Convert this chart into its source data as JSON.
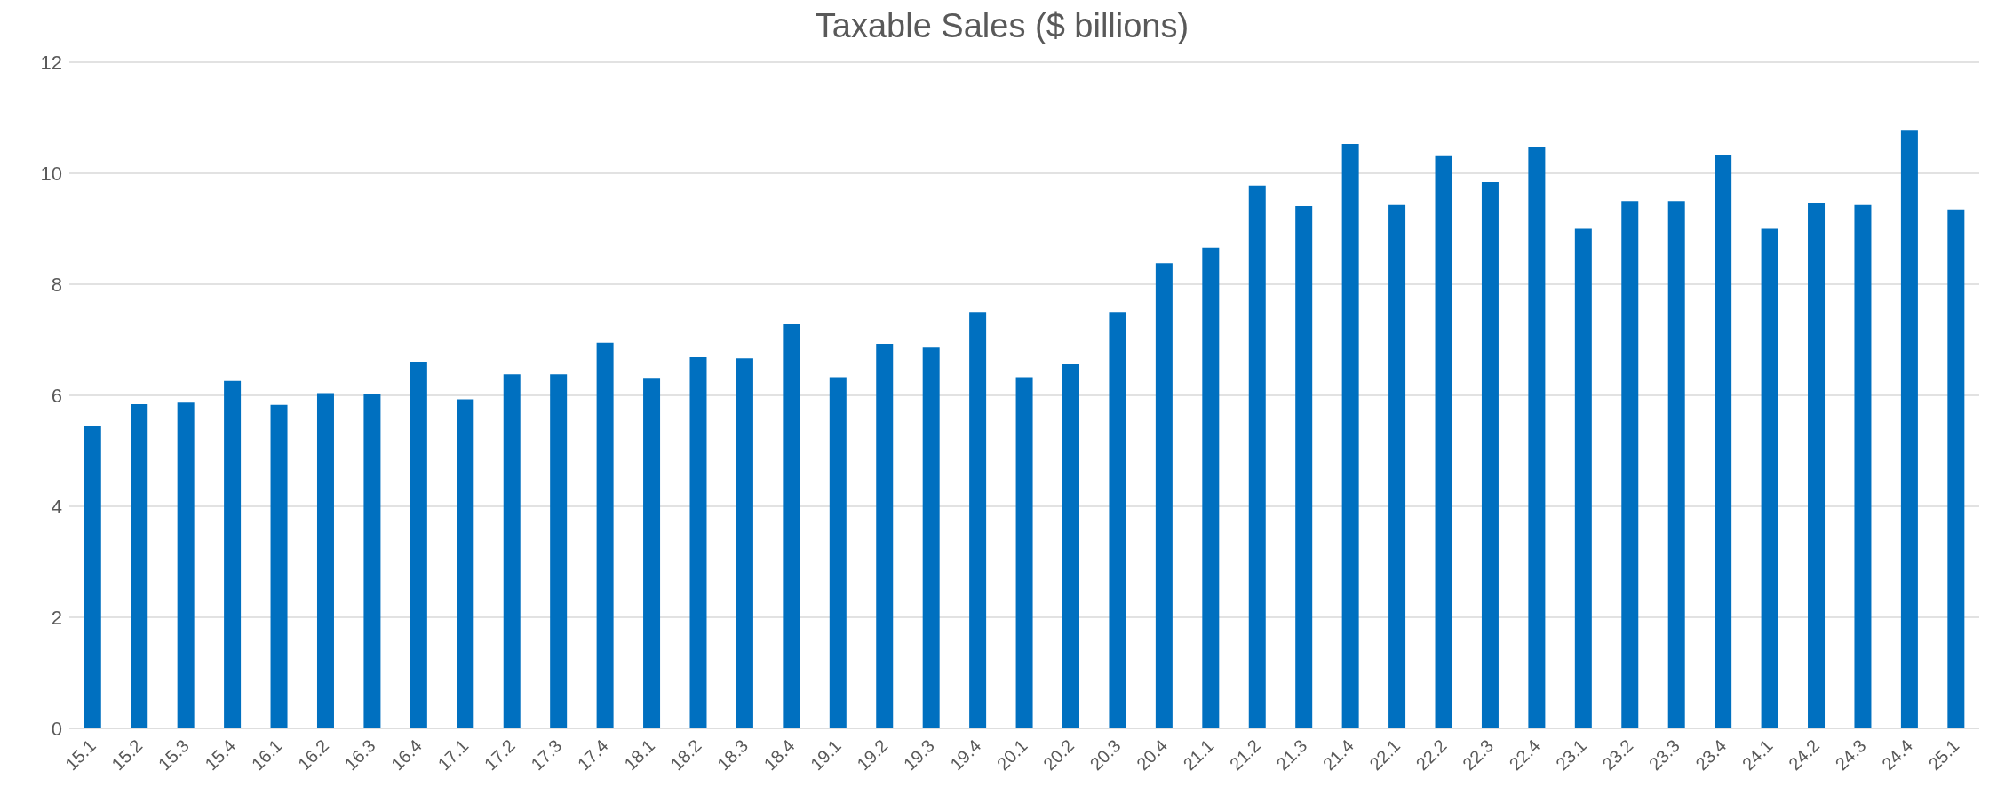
{
  "chart_data": {
    "type": "bar",
    "title": "Taxable Sales ($ billions)",
    "categories": [
      "15.1",
      "15.2",
      "15.3",
      "15.4",
      "16.1",
      "16.2",
      "16.3",
      "16.4",
      "17.1",
      "17.2",
      "17.3",
      "17.4",
      "18.1",
      "18.2",
      "18.3",
      "18.4",
      "19.1",
      "19.2",
      "19.3",
      "19.4",
      "20.1",
      "20.2",
      "20.3",
      "20.4",
      "21.1",
      "21.2",
      "21.3",
      "21.4",
      "22.1",
      "22.2",
      "22.3",
      "22.4",
      "23.1",
      "23.2",
      "23.3",
      "23.4",
      "24.1",
      "24.2",
      "24.3",
      "24.4",
      "25.1"
    ],
    "values": [
      5.44,
      5.84,
      5.87,
      6.26,
      5.83,
      6.04,
      6.02,
      6.6,
      5.93,
      6.38,
      6.38,
      6.95,
      6.3,
      6.69,
      6.67,
      7.28,
      6.33,
      6.93,
      6.86,
      7.5,
      6.33,
      6.56,
      7.5,
      8.38,
      8.66,
      9.78,
      9.41,
      10.53,
      9.43,
      10.31,
      9.84,
      10.47,
      9.0,
      9.5,
      9.5,
      10.32,
      9.0,
      9.47,
      9.43,
      10.78,
      9.35
    ],
    "color": "#0070c0",
    "ylim": [
      0,
      12
    ],
    "yticks": [
      0,
      2,
      4,
      6,
      8,
      10,
      12
    ],
    "grid": "y"
  }
}
